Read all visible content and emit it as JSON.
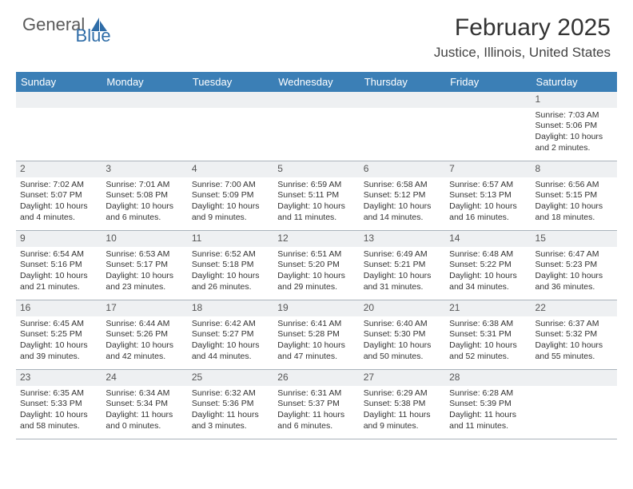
{
  "logo": {
    "text1": "General",
    "text2": "Blue"
  },
  "title": "February 2025",
  "location": "Justice, Illinois, United States",
  "colors": {
    "header_bg": "#3b7fb6",
    "header_text": "#ffffff",
    "daynum_bg": "#eef0f2",
    "border": "#aab3bb",
    "title_color": "#333333",
    "body_text": "#333333"
  },
  "dayNames": [
    "Sunday",
    "Monday",
    "Tuesday",
    "Wednesday",
    "Thursday",
    "Friday",
    "Saturday"
  ],
  "weeks": [
    [
      null,
      null,
      null,
      null,
      null,
      null,
      {
        "n": "1",
        "sunrise": "Sunrise: 7:03 AM",
        "sunset": "Sunset: 5:06 PM",
        "daylight1": "Daylight: 10 hours",
        "daylight2": "and 2 minutes."
      }
    ],
    [
      {
        "n": "2",
        "sunrise": "Sunrise: 7:02 AM",
        "sunset": "Sunset: 5:07 PM",
        "daylight1": "Daylight: 10 hours",
        "daylight2": "and 4 minutes."
      },
      {
        "n": "3",
        "sunrise": "Sunrise: 7:01 AM",
        "sunset": "Sunset: 5:08 PM",
        "daylight1": "Daylight: 10 hours",
        "daylight2": "and 6 minutes."
      },
      {
        "n": "4",
        "sunrise": "Sunrise: 7:00 AM",
        "sunset": "Sunset: 5:09 PM",
        "daylight1": "Daylight: 10 hours",
        "daylight2": "and 9 minutes."
      },
      {
        "n": "5",
        "sunrise": "Sunrise: 6:59 AM",
        "sunset": "Sunset: 5:11 PM",
        "daylight1": "Daylight: 10 hours",
        "daylight2": "and 11 minutes."
      },
      {
        "n": "6",
        "sunrise": "Sunrise: 6:58 AM",
        "sunset": "Sunset: 5:12 PM",
        "daylight1": "Daylight: 10 hours",
        "daylight2": "and 14 minutes."
      },
      {
        "n": "7",
        "sunrise": "Sunrise: 6:57 AM",
        "sunset": "Sunset: 5:13 PM",
        "daylight1": "Daylight: 10 hours",
        "daylight2": "and 16 minutes."
      },
      {
        "n": "8",
        "sunrise": "Sunrise: 6:56 AM",
        "sunset": "Sunset: 5:15 PM",
        "daylight1": "Daylight: 10 hours",
        "daylight2": "and 18 minutes."
      }
    ],
    [
      {
        "n": "9",
        "sunrise": "Sunrise: 6:54 AM",
        "sunset": "Sunset: 5:16 PM",
        "daylight1": "Daylight: 10 hours",
        "daylight2": "and 21 minutes."
      },
      {
        "n": "10",
        "sunrise": "Sunrise: 6:53 AM",
        "sunset": "Sunset: 5:17 PM",
        "daylight1": "Daylight: 10 hours",
        "daylight2": "and 23 minutes."
      },
      {
        "n": "11",
        "sunrise": "Sunrise: 6:52 AM",
        "sunset": "Sunset: 5:18 PM",
        "daylight1": "Daylight: 10 hours",
        "daylight2": "and 26 minutes."
      },
      {
        "n": "12",
        "sunrise": "Sunrise: 6:51 AM",
        "sunset": "Sunset: 5:20 PM",
        "daylight1": "Daylight: 10 hours",
        "daylight2": "and 29 minutes."
      },
      {
        "n": "13",
        "sunrise": "Sunrise: 6:49 AM",
        "sunset": "Sunset: 5:21 PM",
        "daylight1": "Daylight: 10 hours",
        "daylight2": "and 31 minutes."
      },
      {
        "n": "14",
        "sunrise": "Sunrise: 6:48 AM",
        "sunset": "Sunset: 5:22 PM",
        "daylight1": "Daylight: 10 hours",
        "daylight2": "and 34 minutes."
      },
      {
        "n": "15",
        "sunrise": "Sunrise: 6:47 AM",
        "sunset": "Sunset: 5:23 PM",
        "daylight1": "Daylight: 10 hours",
        "daylight2": "and 36 minutes."
      }
    ],
    [
      {
        "n": "16",
        "sunrise": "Sunrise: 6:45 AM",
        "sunset": "Sunset: 5:25 PM",
        "daylight1": "Daylight: 10 hours",
        "daylight2": "and 39 minutes."
      },
      {
        "n": "17",
        "sunrise": "Sunrise: 6:44 AM",
        "sunset": "Sunset: 5:26 PM",
        "daylight1": "Daylight: 10 hours",
        "daylight2": "and 42 minutes."
      },
      {
        "n": "18",
        "sunrise": "Sunrise: 6:42 AM",
        "sunset": "Sunset: 5:27 PM",
        "daylight1": "Daylight: 10 hours",
        "daylight2": "and 44 minutes."
      },
      {
        "n": "19",
        "sunrise": "Sunrise: 6:41 AM",
        "sunset": "Sunset: 5:28 PM",
        "daylight1": "Daylight: 10 hours",
        "daylight2": "and 47 minutes."
      },
      {
        "n": "20",
        "sunrise": "Sunrise: 6:40 AM",
        "sunset": "Sunset: 5:30 PM",
        "daylight1": "Daylight: 10 hours",
        "daylight2": "and 50 minutes."
      },
      {
        "n": "21",
        "sunrise": "Sunrise: 6:38 AM",
        "sunset": "Sunset: 5:31 PM",
        "daylight1": "Daylight: 10 hours",
        "daylight2": "and 52 minutes."
      },
      {
        "n": "22",
        "sunrise": "Sunrise: 6:37 AM",
        "sunset": "Sunset: 5:32 PM",
        "daylight1": "Daylight: 10 hours",
        "daylight2": "and 55 minutes."
      }
    ],
    [
      {
        "n": "23",
        "sunrise": "Sunrise: 6:35 AM",
        "sunset": "Sunset: 5:33 PM",
        "daylight1": "Daylight: 10 hours",
        "daylight2": "and 58 minutes."
      },
      {
        "n": "24",
        "sunrise": "Sunrise: 6:34 AM",
        "sunset": "Sunset: 5:34 PM",
        "daylight1": "Daylight: 11 hours",
        "daylight2": "and 0 minutes."
      },
      {
        "n": "25",
        "sunrise": "Sunrise: 6:32 AM",
        "sunset": "Sunset: 5:36 PM",
        "daylight1": "Daylight: 11 hours",
        "daylight2": "and 3 minutes."
      },
      {
        "n": "26",
        "sunrise": "Sunrise: 6:31 AM",
        "sunset": "Sunset: 5:37 PM",
        "daylight1": "Daylight: 11 hours",
        "daylight2": "and 6 minutes."
      },
      {
        "n": "27",
        "sunrise": "Sunrise: 6:29 AM",
        "sunset": "Sunset: 5:38 PM",
        "daylight1": "Daylight: 11 hours",
        "daylight2": "and 9 minutes."
      },
      {
        "n": "28",
        "sunrise": "Sunrise: 6:28 AM",
        "sunset": "Sunset: 5:39 PM",
        "daylight1": "Daylight: 11 hours",
        "daylight2": "and 11 minutes."
      },
      null
    ]
  ]
}
